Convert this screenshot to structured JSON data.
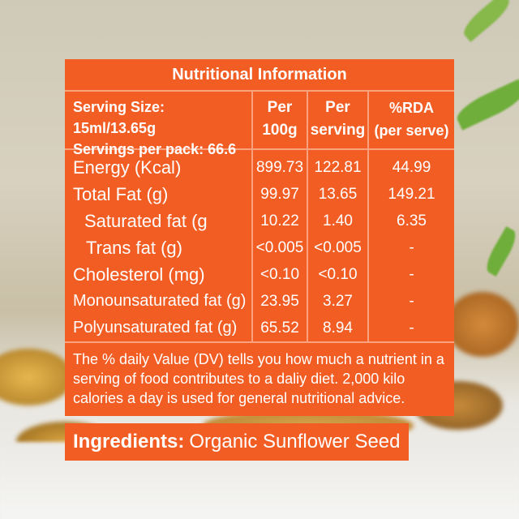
{
  "panel": {
    "title": "Nutritional Information",
    "serving_size": "Serving Size: 15ml/13.65g",
    "servings_per_pack": "Servings per pack: 66.6",
    "columns": [
      {
        "line1": "Per",
        "line2": "100g"
      },
      {
        "line1": "Per",
        "line2": "serving"
      },
      {
        "line1": "%RDA",
        "line2": "(per serve)"
      }
    ],
    "rows": [
      {
        "name": "Energy (Kcal)",
        "per100g": "899.73",
        "per_serving": "122.81",
        "rda": "44.99"
      },
      {
        "name": "Total Fat (g)",
        "per100g": "99.97",
        "per_serving": "13.65",
        "rda": "149.21"
      },
      {
        "name": "Saturated fat (g",
        "per100g": "10.22",
        "per_serving": "1.40",
        "rda": "6.35"
      },
      {
        "name": "Trans fat (g)",
        "per100g": "<0.005",
        "per_serving": "<0.005",
        "rda": "-"
      },
      {
        "name": "Cholesterol (mg)",
        "per100g": "<0.10",
        "per_serving": "<0.10",
        "rda": "-"
      },
      {
        "name": "Monounsaturated fat (g)",
        "per100g": "23.95",
        "per_serving": "3.27",
        "rda": "-"
      },
      {
        "name": "Polyunsaturated fat (g)",
        "per100g": "65.52",
        "per_serving": "8.94",
        "rda": "-"
      }
    ],
    "note": "The % daily Value (DV) tells you how much a nutrient in a serving of food contributes to a daliy diet. 2,000 kilo calories a day is used for general nutritional advice."
  },
  "ingredients": {
    "label": "Ingredients:",
    "value": "Organic Sunflower Seed"
  },
  "colors": {
    "panel_orange": "#f25d23",
    "divider": "#f9a27d"
  }
}
